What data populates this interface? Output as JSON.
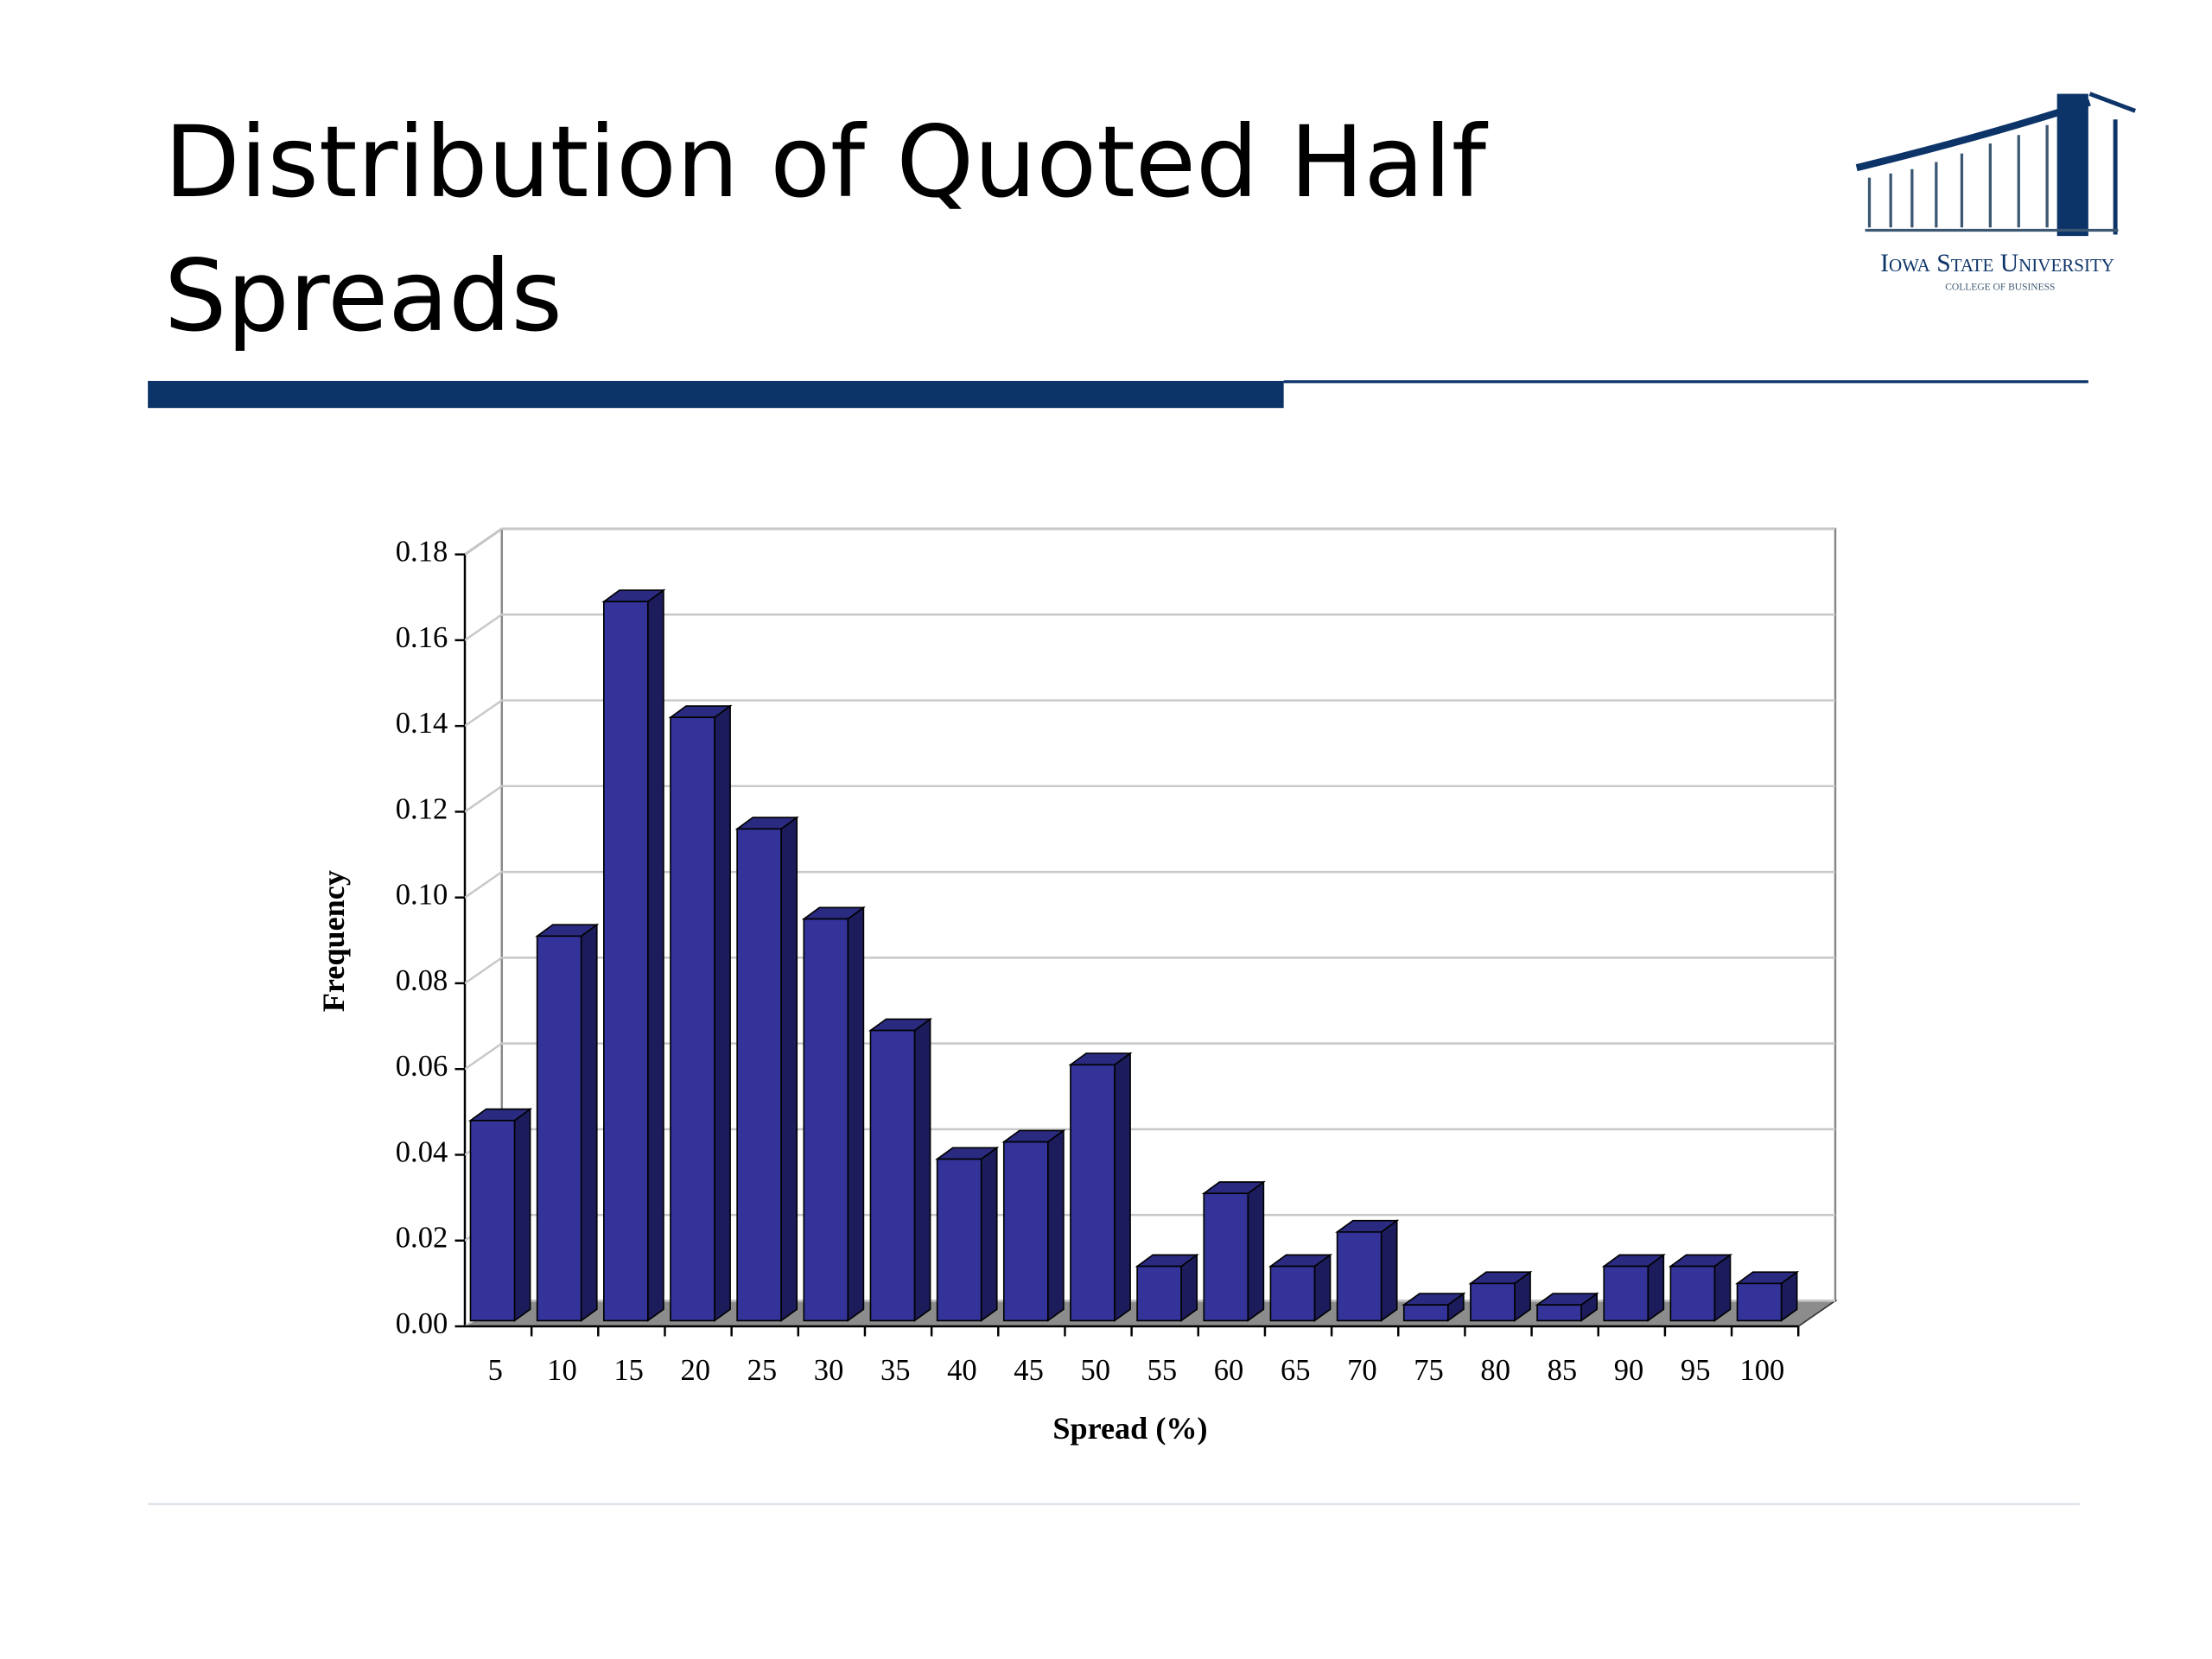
{
  "header": {
    "title": "Distribution of Quoted Half Spreads",
    "logo": {
      "name": "Iowa State University",
      "unit": "College of Business"
    }
  },
  "chart_data": {
    "type": "bar3d",
    "x_label": "Spread (%)",
    "y_label": "Frequency",
    "categories": [
      "5",
      "10",
      "15",
      "20",
      "25",
      "30",
      "35",
      "40",
      "45",
      "50",
      "55",
      "60",
      "65",
      "70",
      "75",
      "80",
      "85",
      "90",
      "95",
      "100"
    ],
    "values": [
      0.048,
      0.091,
      0.169,
      0.142,
      0.116,
      0.095,
      0.069,
      0.039,
      0.043,
      0.061,
      0.014,
      0.031,
      0.014,
      0.022,
      0.005,
      0.01,
      0.005,
      0.014,
      0.014,
      0.01
    ],
    "color": "#333399",
    "ylim": [
      0,
      0.18
    ],
    "yticks": [
      {
        "value": 0,
        "label": "0.00"
      },
      {
        "value": 0.02,
        "label": "0.02"
      },
      {
        "value": 0.04,
        "label": "0.04"
      },
      {
        "value": 0.06,
        "label": "0.06"
      },
      {
        "value": 0.08,
        "label": "0.08"
      },
      {
        "value": 0.1,
        "label": "0.10"
      },
      {
        "value": 0.12,
        "label": "0.12"
      },
      {
        "value": 0.14,
        "label": "0.14"
      },
      {
        "value": 0.16,
        "label": "0.16"
      },
      {
        "value": 0.18,
        "label": "0.18"
      }
    ],
    "grid": true
  }
}
